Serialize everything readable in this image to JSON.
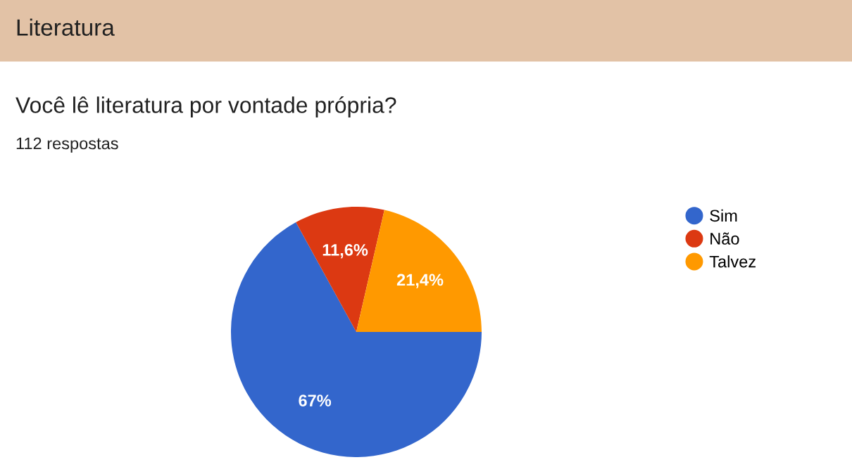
{
  "chart_data": {
    "type": "pie",
    "title": "Você lê literatura por vontade própria?",
    "subtitle": "112 respostas",
    "annotations": [
      "Literatura"
    ],
    "categories": [
      "Sim",
      "Não",
      "Talvez"
    ],
    "values": [
      67,
      11.6,
      21.4
    ],
    "value_labels": [
      "67%",
      "11,6%",
      "21,4%"
    ],
    "colors": [
      "#3366cc",
      "#dc3912",
      "#ff9900"
    ],
    "legend": "right"
  }
}
